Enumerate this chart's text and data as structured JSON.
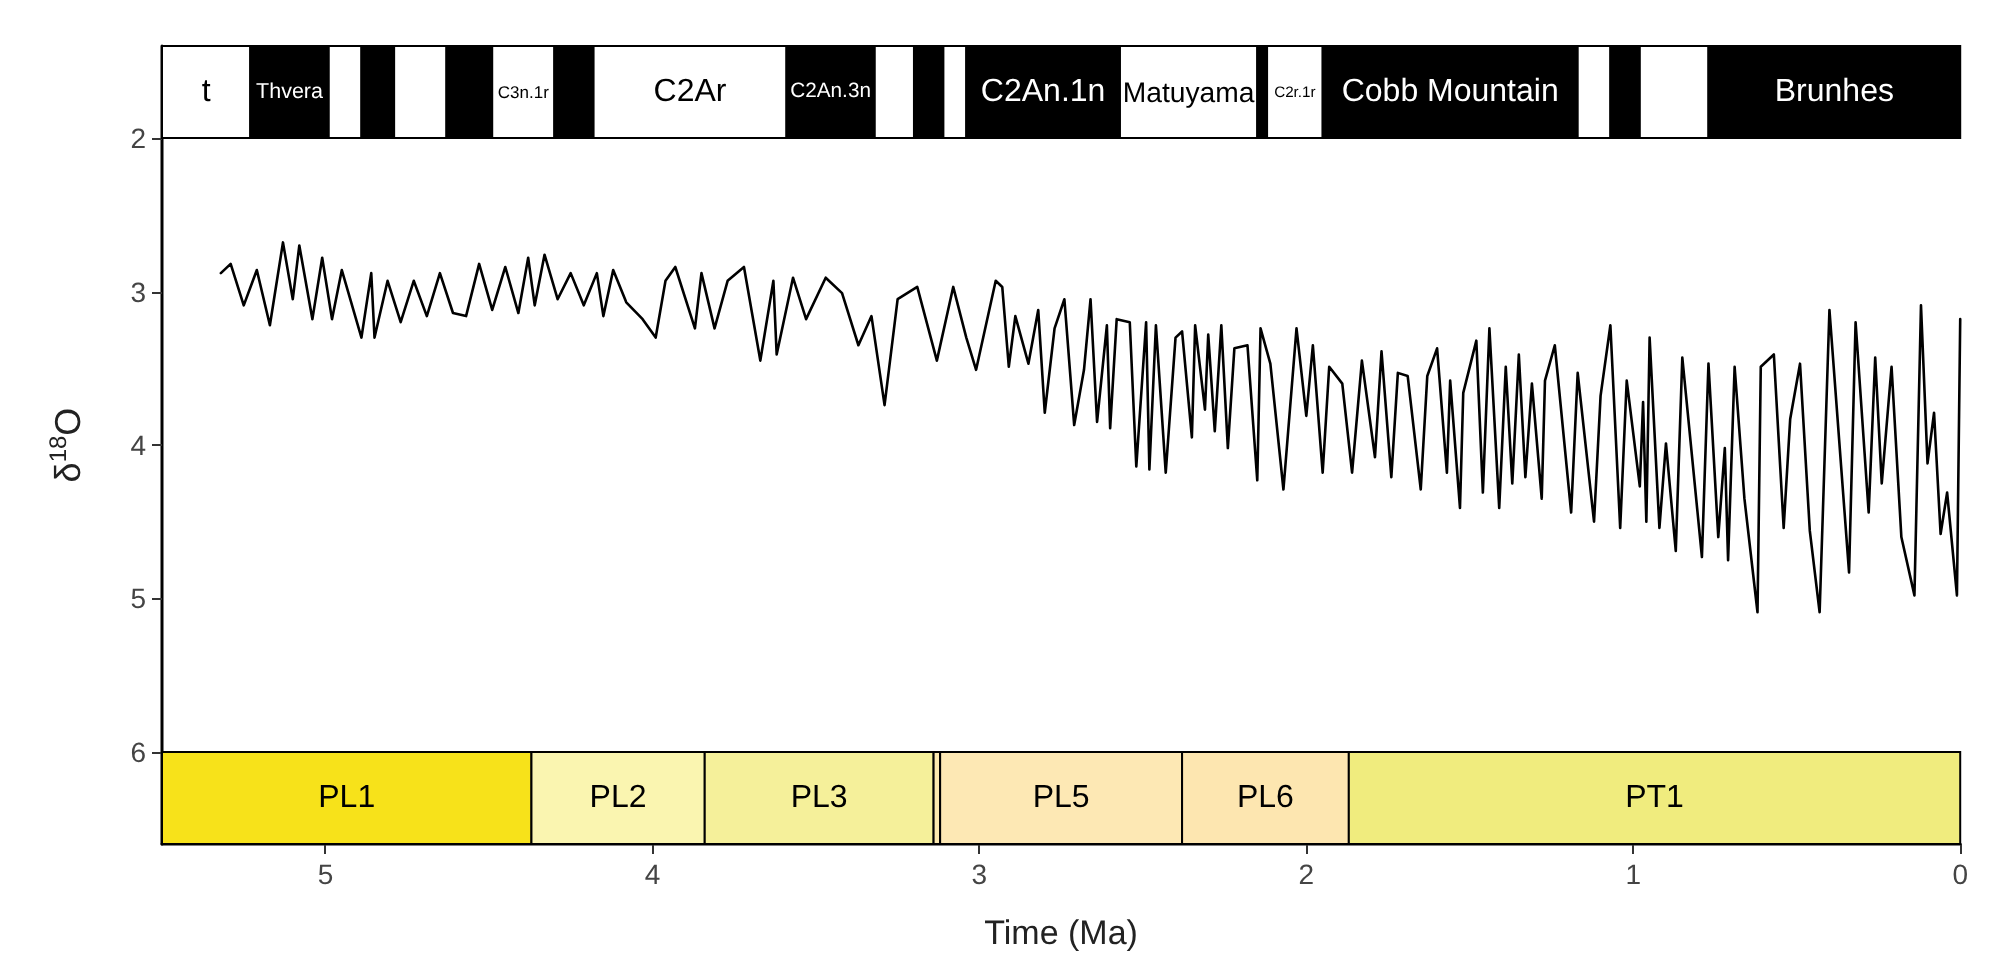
{
  "chart_data": {
    "type": "line",
    "xlabel": "Time (Ma)",
    "ylabel": "δ$^{18}$O",
    "xlim": [
      5.5,
      0
    ],
    "xticks": [
      5,
      4,
      3,
      2,
      1,
      0
    ],
    "ylim": [
      6.6,
      1.4
    ],
    "yticks": [
      2,
      3,
      4,
      5,
      6
    ],
    "grid": false,
    "marker": "none",
    "line_style": "solid",
    "tick_labels": "xy",
    "series": [
      {
        "color": "#000000",
        "x": [
          5.32,
          5.29,
          5.25,
          5.21,
          5.17,
          5.13,
          5.1,
          5.08,
          5.04,
          5.01,
          4.98,
          4.95,
          4.89,
          4.86,
          4.85,
          4.81,
          4.77,
          4.73,
          4.69,
          4.65,
          4.61,
          4.57,
          4.53,
          4.49,
          4.45,
          4.41,
          4.38,
          4.36,
          4.33,
          4.29,
          4.25,
          4.21,
          4.17,
          4.15,
          4.12,
          4.08,
          4.03,
          3.99,
          3.96,
          3.93,
          3.87,
          3.85,
          3.81,
          3.77,
          3.72,
          3.67,
          3.63,
          3.62,
          3.57,
          3.53,
          3.47,
          3.42,
          3.37,
          3.33,
          3.29,
          3.25,
          3.19,
          3.13,
          3.08,
          3.04,
          3.01,
          2.95,
          2.93,
          2.91,
          2.89,
          2.85,
          2.82,
          2.8,
          2.77,
          2.74,
          2.71,
          2.68,
          2.66,
          2.64,
          2.61,
          2.6,
          2.58,
          2.54,
          2.52,
          2.49,
          2.48,
          2.46,
          2.43,
          2.4,
          2.38,
          2.35,
          2.34,
          2.31,
          2.3,
          2.28,
          2.26,
          2.24,
          2.22,
          2.18,
          2.15,
          2.14,
          2.11,
          2.07,
          2.03,
          2.0,
          1.98,
          1.95,
          1.93,
          1.89,
          1.86,
          1.83,
          1.79,
          1.77,
          1.74,
          1.72,
          1.69,
          1.65,
          1.63,
          1.6,
          1.57,
          1.56,
          1.53,
          1.52,
          1.48,
          1.46,
          1.44,
          1.41,
          1.39,
          1.37,
          1.35,
          1.33,
          1.31,
          1.28,
          1.27,
          1.24,
          1.19,
          1.17,
          1.12,
          1.1,
          1.07,
          1.04,
          1.02,
          0.98,
          0.97,
          0.96,
          0.95,
          0.92,
          0.9,
          0.87,
          0.85,
          0.79,
          0.77,
          0.74,
          0.72,
          0.71,
          0.69,
          0.66,
          0.62,
          0.61,
          0.57,
          0.54,
          0.52,
          0.49,
          0.46,
          0.43,
          0.4,
          0.34,
          0.32,
          0.28,
          0.26,
          0.24,
          0.21,
          0.18,
          0.14,
          0.12,
          0.1,
          0.08,
          0.06,
          0.04,
          0.01,
          0.0
        ],
        "values": [
          2.88,
          2.82,
          3.09,
          2.86,
          3.22,
          2.68,
          3.05,
          2.7,
          3.18,
          2.78,
          3.18,
          2.86,
          3.3,
          2.88,
          3.3,
          2.93,
          3.2,
          2.93,
          3.16,
          2.88,
          3.14,
          3.16,
          2.82,
          3.12,
          2.84,
          3.14,
          2.78,
          3.09,
          2.76,
          3.05,
          2.88,
          3.09,
          2.88,
          3.16,
          2.86,
          3.07,
          3.18,
          3.3,
          2.93,
          2.84,
          3.24,
          2.88,
          3.24,
          2.93,
          2.84,
          3.45,
          2.93,
          3.41,
          2.91,
          3.18,
          2.91,
          3.01,
          3.35,
          3.16,
          3.74,
          3.05,
          2.97,
          3.45,
          2.97,
          3.3,
          3.51,
          2.93,
          2.97,
          3.49,
          3.16,
          3.47,
          3.12,
          3.79,
          3.24,
          3.05,
          3.87,
          3.51,
          3.05,
          3.85,
          3.22,
          3.89,
          3.18,
          3.2,
          4.14,
          3.2,
          4.16,
          3.22,
          4.18,
          3.3,
          3.26,
          3.95,
          3.22,
          3.77,
          3.28,
          3.91,
          3.22,
          4.02,
          3.37,
          3.35,
          4.23,
          3.24,
          3.47,
          4.29,
          3.24,
          3.81,
          3.35,
          4.18,
          3.49,
          3.6,
          4.18,
          3.45,
          4.08,
          3.39,
          4.21,
          3.53,
          3.55,
          4.29,
          3.55,
          3.37,
          4.18,
          3.58,
          4.41,
          3.66,
          3.32,
          4.31,
          3.24,
          4.41,
          3.49,
          4.25,
          3.41,
          4.21,
          3.6,
          4.35,
          3.58,
          3.35,
          4.44,
          3.53,
          4.5,
          3.68,
          3.22,
          4.54,
          3.58,
          4.27,
          3.72,
          4.5,
          3.3,
          4.54,
          3.99,
          4.69,
          3.43,
          4.73,
          3.47,
          4.6,
          4.02,
          4.75,
          3.49,
          4.35,
          5.09,
          3.49,
          3.41,
          4.54,
          3.83,
          3.47,
          4.56,
          5.09,
          3.12,
          4.83,
          3.2,
          4.44,
          3.43,
          4.25,
          3.49,
          4.6,
          4.98,
          3.09,
          4.12,
          3.79,
          4.58,
          4.31,
          4.98,
          3.18
        ]
      }
    ],
    "bands": [
      {
        "axis": "x",
        "from": 5.5,
        "to": 5.23,
        "label": "t",
        "color": "#ffffff"
      },
      {
        "axis": "x",
        "from": 5.23,
        "to": 4.99,
        "label": "Thvera",
        "color": "#000000"
      },
      {
        "axis": "x",
        "from": 4.99,
        "to": 4.89,
        "label": null,
        "color": "#ffffff"
      },
      {
        "axis": "x",
        "from": 4.89,
        "to": 4.79,
        "label": null,
        "color": "#000000"
      },
      {
        "axis": "x",
        "from": 4.79,
        "to": 4.63,
        "label": null,
        "color": "#ffffff"
      },
      {
        "axis": "x",
        "from": 4.63,
        "to": 4.49,
        "label": null,
        "color": "#000000"
      },
      {
        "axis": "x",
        "from": 4.49,
        "to": 4.3,
        "label": "C3n.1r",
        "color": "#ffffff"
      },
      {
        "axis": "x",
        "from": 4.3,
        "to": 4.18,
        "label": null,
        "color": "#000000"
      },
      {
        "axis": "x",
        "from": 4.18,
        "to": 3.59,
        "label": "C2Ar",
        "color": "#ffffff"
      },
      {
        "axis": "x",
        "from": 3.59,
        "to": 3.32,
        "label": "C2An.3n",
        "color": "#000000"
      },
      {
        "axis": "x",
        "from": 3.32,
        "to": 3.2,
        "label": null,
        "color": "#ffffff"
      },
      {
        "axis": "x",
        "from": 3.2,
        "to": 3.11,
        "label": null,
        "color": "#000000"
      },
      {
        "axis": "x",
        "from": 3.11,
        "to": 3.04,
        "label": null,
        "color": "#ffffff"
      },
      {
        "axis": "x",
        "from": 3.04,
        "to": 2.57,
        "label": "C2An.1n",
        "color": "#000000"
      },
      {
        "axis": "x",
        "from": 2.57,
        "to": 2.15,
        "label": "Matuyama",
        "color": "#ffffff"
      },
      {
        "axis": "x",
        "from": 2.15,
        "to": 2.12,
        "label": null,
        "color": "#000000"
      },
      {
        "axis": "x",
        "from": 2.12,
        "to": 1.95,
        "label": "C2r.1r",
        "color": "#ffffff"
      },
      {
        "axis": "x",
        "from": 1.95,
        "to": 1.17,
        "label": "Cobb Mountain",
        "color": "#000000"
      },
      {
        "axis": "x",
        "from": 1.17,
        "to": 1.07,
        "label": null,
        "color": "#ffffff"
      },
      {
        "axis": "x",
        "from": 1.07,
        "to": 0.98,
        "label": null,
        "color": "#000000"
      },
      {
        "axis": "x",
        "from": 0.98,
        "to": 0.77,
        "label": null,
        "color": "#ffffff"
      },
      {
        "axis": "x",
        "from": 0.77,
        "to": 0,
        "label": "Brunhes",
        "color": "#000000"
      },
      {
        "axis": "x",
        "from": 5.5,
        "to": 4.37,
        "label": "PL1",
        "color": "#f7e21a"
      },
      {
        "axis": "x",
        "from": 4.37,
        "to": 3.84,
        "label": "PL2",
        "color": "#faf5b0"
      },
      {
        "axis": "x",
        "from": 3.84,
        "to": 3.14,
        "label": "PL3",
        "color": "#f5f09a"
      },
      {
        "axis": "x",
        "from": 3.14,
        "to": 3.12,
        "label": null,
        "color": "#fce9b0"
      },
      {
        "axis": "x",
        "from": 3.12,
        "to": 2.38,
        "label": "PL5",
        "color": "#fde8b4"
      },
      {
        "axis": "x",
        "from": 2.38,
        "to": 1.87,
        "label": "PL6",
        "color": "#fde6b0"
      },
      {
        "axis": "x",
        "from": 1.87,
        "to": 0,
        "label": "PT1",
        "color": "#f0ec7e"
      }
    ]
  }
}
